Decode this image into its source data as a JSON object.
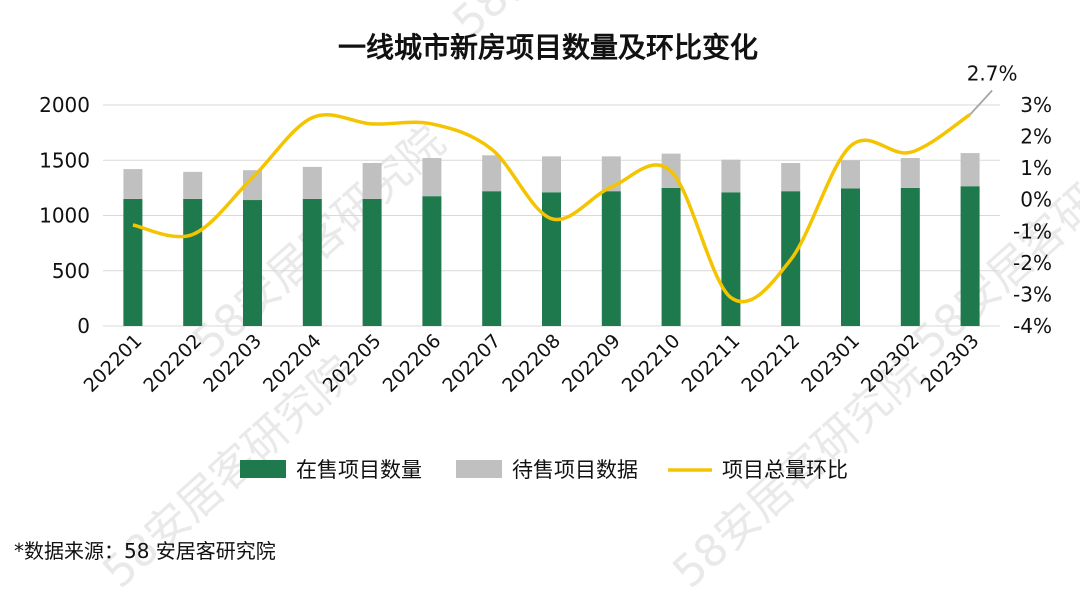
{
  "chart_data": {
    "type": "bar+line",
    "title": "一线城市新房项目数量及环比变化",
    "categories": [
      "202201",
      "202202",
      "202203",
      "202204",
      "202205",
      "202206",
      "202207",
      "202208",
      "202209",
      "202210",
      "202211",
      "202212",
      "202301",
      "202302",
      "202303"
    ],
    "series": [
      {
        "name": "在售项目数量",
        "type": "stacked-bar",
        "axis": "left",
        "color": "#1e7a4c",
        "values": [
          1150,
          1150,
          1140,
          1150,
          1150,
          1175,
          1220,
          1210,
          1220,
          1250,
          1210,
          1220,
          1245,
          1250,
          1265
        ]
      },
      {
        "name": "待售项目数据",
        "type": "stacked-bar",
        "axis": "left",
        "color": "#c0c0c0",
        "values": [
          270,
          245,
          270,
          290,
          325,
          345,
          325,
          325,
          315,
          310,
          295,
          255,
          255,
          270,
          300
        ]
      },
      {
        "name": "项目总量环比",
        "type": "line",
        "axis": "right",
        "color": "#f5c400",
        "values": [
          -0.8,
          -1.1,
          0.7,
          2.6,
          2.4,
          2.4,
          1.6,
          -0.6,
          0.4,
          0.9,
          -3.1,
          -1.9,
          1.7,
          1.5,
          2.7
        ]
      }
    ],
    "left_axis": {
      "ylim": [
        0,
        2000
      ],
      "ticks": [
        0,
        500,
        1000,
        1500,
        2000
      ]
    },
    "right_axis": {
      "ylim": [
        -4,
        3
      ],
      "ticks": [
        "-4%",
        "-3%",
        "-2%",
        "-1%",
        "0%",
        "1%",
        "2%",
        "3%"
      ]
    },
    "callout": {
      "label": "2.7%",
      "category": "202303"
    },
    "legend_position": "bottom"
  },
  "source_note": "*数据来源：58 安居客研究院",
  "watermark": "58安居客研究院"
}
